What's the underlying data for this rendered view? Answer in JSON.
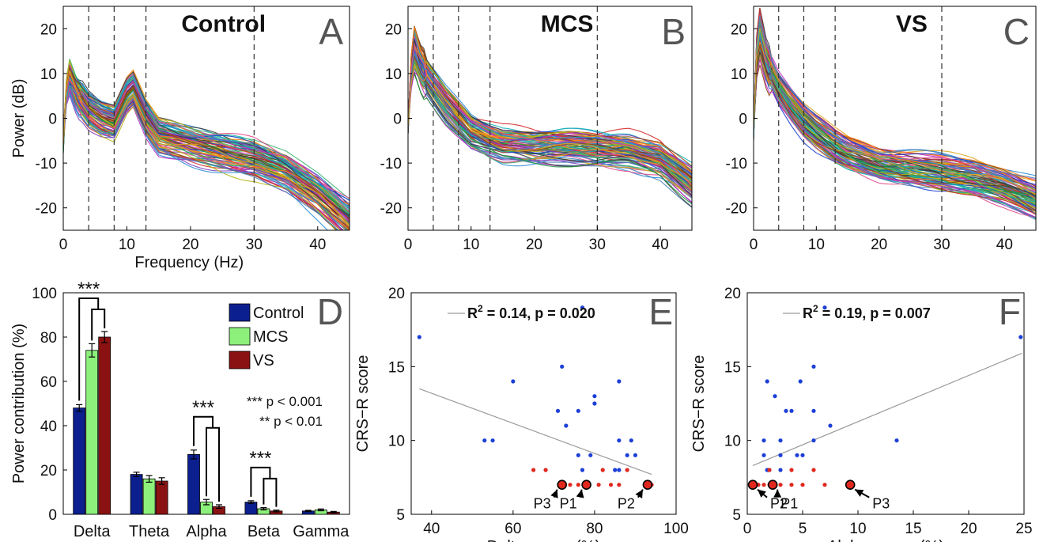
{
  "chart_data": [
    {
      "panel": "A",
      "type": "line",
      "title": "Control",
      "xlabel": "Frequency (Hz)",
      "ylabel": "Power (dB)",
      "xlim": [
        0,
        45
      ],
      "ylim": [
        -25,
        25
      ],
      "xticks": [
        0,
        10,
        20,
        30,
        40
      ],
      "yticks": [
        -20,
        -10,
        0,
        10,
        20
      ],
      "band_edges_hz": [
        4,
        8,
        13,
        30
      ],
      "series_count": 90,
      "mean_spectrum": {
        "x": [
          0,
          0.5,
          1,
          2,
          4,
          6,
          8,
          10,
          11,
          13,
          15,
          20,
          25,
          30,
          35,
          40,
          45
        ],
        "y": [
          -5,
          6,
          9.5,
          6,
          2,
          0,
          -1,
          5,
          6.5,
          0,
          -4,
          -6,
          -7.5,
          -9,
          -12,
          -17,
          -23
        ]
      }
    },
    {
      "panel": "B",
      "type": "line",
      "title": "MCS",
      "xlim": [
        0,
        45
      ],
      "ylim": [
        -25,
        25
      ],
      "xticks": [
        0,
        10,
        20,
        30,
        40
      ],
      "yticks": [
        -20,
        -10,
        0,
        10,
        20
      ],
      "band_edges_hz": [
        4,
        8,
        13,
        30
      ],
      "series_count": 90,
      "mean_spectrum": {
        "x": [
          0,
          0.5,
          1,
          2,
          4,
          6,
          8,
          10,
          13,
          15,
          20,
          25,
          30,
          35,
          40,
          45
        ],
        "y": [
          -2,
          10,
          15,
          11,
          7,
          3,
          0,
          -3,
          -5,
          -6,
          -6.5,
          -6.5,
          -7,
          -7.5,
          -9.5,
          -15
        ]
      }
    },
    {
      "panel": "C",
      "type": "line",
      "title": "VS",
      "xlim": [
        0,
        45
      ],
      "ylim": [
        -25,
        25
      ],
      "xticks": [
        0,
        10,
        20,
        30,
        40
      ],
      "yticks": [
        -20,
        -10,
        0,
        10,
        20
      ],
      "band_edges_hz": [
        4,
        8,
        13,
        30
      ],
      "series_count": 90,
      "mean_spectrum": {
        "x": [
          0,
          0.5,
          1,
          2,
          4,
          6,
          8,
          10,
          13,
          15,
          20,
          25,
          30,
          35,
          40,
          45
        ],
        "y": [
          -3,
          14,
          19,
          13,
          7,
          3,
          -0.5,
          -3,
          -6,
          -7.5,
          -10,
          -11,
          -12,
          -13,
          -15,
          -18
        ]
      }
    },
    {
      "panel": "D",
      "type": "bar",
      "ylabel": "Power contribution (%)",
      "ylim": [
        0,
        100
      ],
      "yticks": [
        0,
        20,
        40,
        60,
        80,
        100
      ],
      "categories": [
        "Delta",
        "Theta",
        "Alpha",
        "Beta",
        "Gamma"
      ],
      "series": [
        {
          "name": "Control",
          "values": [
            48,
            18,
            27,
            5.5,
            1.5
          ],
          "errors": [
            1.5,
            1,
            2,
            0.6,
            0.3
          ]
        },
        {
          "name": "MCS",
          "values": [
            74,
            16,
            5.5,
            2.5,
            2
          ],
          "errors": [
            3,
            1.5,
            1.2,
            0.5,
            0.4
          ]
        },
        {
          "name": "VS",
          "values": [
            80,
            15,
            3.5,
            1.5,
            1
          ],
          "errors": [
            2.5,
            1.5,
            0.8,
            0.4,
            0.3
          ]
        }
      ],
      "significance": [
        {
          "category": "Delta",
          "stars": "***"
        },
        {
          "category": "Alpha",
          "stars": "***"
        },
        {
          "category": "Beta",
          "stars": "***"
        }
      ],
      "legend": {
        "placement": "top-right"
      },
      "sig_legend": [
        "*** p < 0.001",
        "** p < 0.01"
      ]
    },
    {
      "panel": "E",
      "type": "scatter",
      "xlabel": "Delta power (%)",
      "ylabel": "CRS−R score",
      "xlim": [
        35,
        100
      ],
      "ylim": [
        5,
        20
      ],
      "xticks": [
        40,
        60,
        80,
        100
      ],
      "yticks": [
        5,
        10,
        15,
        20
      ],
      "stat_prefix": "R",
      "stat_exp": "2",
      "stat_rest": " = 0.14, p = 0.020",
      "fit": {
        "x": [
          37,
          94
        ],
        "y": [
          13.5,
          7.7
        ]
      },
      "mcs_points": [
        [
          37,
          17
        ],
        [
          77,
          19
        ],
        [
          60,
          14
        ],
        [
          72,
          15
        ],
        [
          80,
          13
        ],
        [
          80,
          12.5
        ],
        [
          71,
          12
        ],
        [
          76,
          12
        ],
        [
          73,
          11
        ],
        [
          53,
          10
        ],
        [
          55,
          10
        ],
        [
          86,
          10
        ],
        [
          89,
          10
        ],
        [
          76,
          9
        ],
        [
          79,
          9
        ],
        [
          88,
          9
        ],
        [
          90,
          9
        ],
        [
          77,
          8
        ],
        [
          86,
          8
        ],
        [
          85,
          8
        ],
        [
          86,
          14
        ]
      ],
      "vs_points": [
        [
          65,
          8
        ],
        [
          68,
          8
        ],
        [
          82,
          8
        ],
        [
          88,
          8
        ],
        [
          74,
          7
        ],
        [
          76,
          7
        ],
        [
          81,
          7
        ],
        [
          84,
          7
        ],
        [
          86,
          7
        ],
        [
          94,
          7
        ]
      ],
      "highlighted": [
        {
          "label": "P3",
          "x": 72,
          "y": 7
        },
        {
          "label": "P1",
          "x": 78,
          "y": 7
        },
        {
          "label": "P2",
          "x": 93,
          "y": 7
        }
      ]
    },
    {
      "panel": "F",
      "type": "scatter",
      "xlabel": "Alpha power (%)",
      "ylabel": "CRS−R score",
      "xlim": [
        0,
        25
      ],
      "ylim": [
        5,
        20
      ],
      "xticks": [
        0,
        5,
        10,
        15,
        20,
        25
      ],
      "yticks": [
        5,
        10,
        15,
        20
      ],
      "stat_prefix": "R",
      "stat_exp": "2",
      "stat_rest": " = 0.19, p = 0.007",
      "fit": {
        "x": [
          0.5,
          24.8
        ],
        "y": [
          8.3,
          15.9
        ]
      },
      "mcs_points": [
        [
          7,
          19
        ],
        [
          24.7,
          17
        ],
        [
          6,
          15
        ],
        [
          1.8,
          14
        ],
        [
          4.8,
          14
        ],
        [
          2.5,
          13
        ],
        [
          3.5,
          12
        ],
        [
          4,
          12
        ],
        [
          6,
          12
        ],
        [
          7.5,
          11
        ],
        [
          1.5,
          10
        ],
        [
          3,
          10
        ],
        [
          13.5,
          10
        ],
        [
          6,
          10
        ],
        [
          1.5,
          9
        ],
        [
          3,
          9
        ],
        [
          4.5,
          9
        ],
        [
          5,
          9
        ],
        [
          2,
          8
        ],
        [
          3,
          8
        ],
        [
          1.8,
          8
        ]
      ],
      "vs_points": [
        [
          2,
          8
        ],
        [
          4,
          8
        ],
        [
          6,
          8
        ],
        [
          1,
          7
        ],
        [
          2,
          7
        ],
        [
          3,
          7
        ],
        [
          4,
          7
        ],
        [
          5,
          7
        ],
        [
          7,
          7
        ],
        [
          1.5,
          7
        ]
      ],
      "highlighted": [
        {
          "label": "P2",
          "x": 0.5,
          "y": 7
        },
        {
          "label": "P1",
          "x": 2.3,
          "y": 7
        },
        {
          "label": "P3",
          "x": 9.3,
          "y": 7
        }
      ]
    }
  ]
}
